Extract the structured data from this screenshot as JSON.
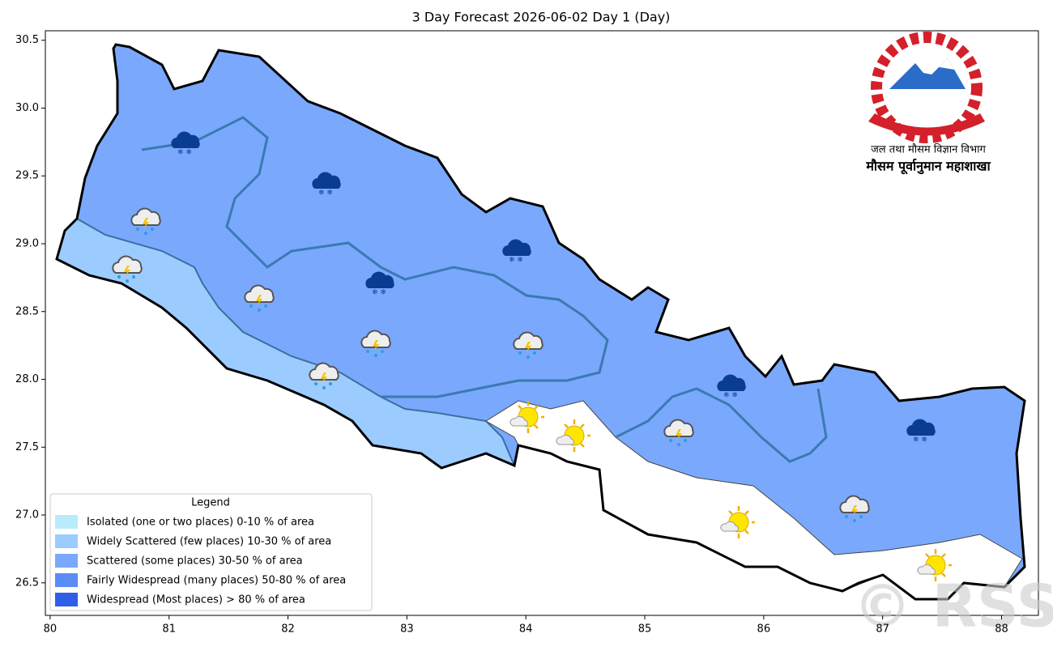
{
  "chart_data": {
    "type": "map",
    "title": "3 Day Forecast 2026-06-02 Day 1 (Day)",
    "xlim": [
      79.96,
      88.31
    ],
    "ylim": [
      26.26,
      30.57
    ],
    "xticks": [
      80,
      81,
      82,
      83,
      84,
      85,
      86,
      87,
      88
    ],
    "yticks": [
      {
        "value": 26.5,
        "label": "26.5"
      },
      {
        "value": 27,
        "label": "27.0"
      },
      {
        "value": 27.5,
        "label": "27.5"
      },
      {
        "value": 28,
        "label": "28.0"
      },
      {
        "value": 28.5,
        "label": "28.5"
      },
      {
        "value": 29,
        "label": "29.0"
      },
      {
        "value": 29.5,
        "label": "29.5"
      },
      {
        "value": 30,
        "label": "30.0"
      },
      {
        "value": 30.5,
        "label": "30.5"
      }
    ],
    "legend": {
      "title": "Legend",
      "items": [
        {
          "label": "Isolated (one or two places)  0-10 % of area",
          "color": "#b8ecfd"
        },
        {
          "label": "Widely Scattered (few places)  10-30 % of area",
          "color": "#9ccbff"
        },
        {
          "label": "Scattered (some places)  30-50 % of area",
          "color": "#7aa8fd"
        },
        {
          "label": "Fairly Widespread (many places)  50-80 % of area",
          "color": "#5a8cf6"
        },
        {
          "label": "Widespread (Most places) > 80 % of area",
          "color": "#2f5ee8"
        }
      ]
    }
  },
  "logo": {
    "department": "जल तथा मौसम विज्ञान विभाग",
    "division": "मौसम पूर्वानुमान महाशाखा"
  },
  "watermark": "© RSS"
}
